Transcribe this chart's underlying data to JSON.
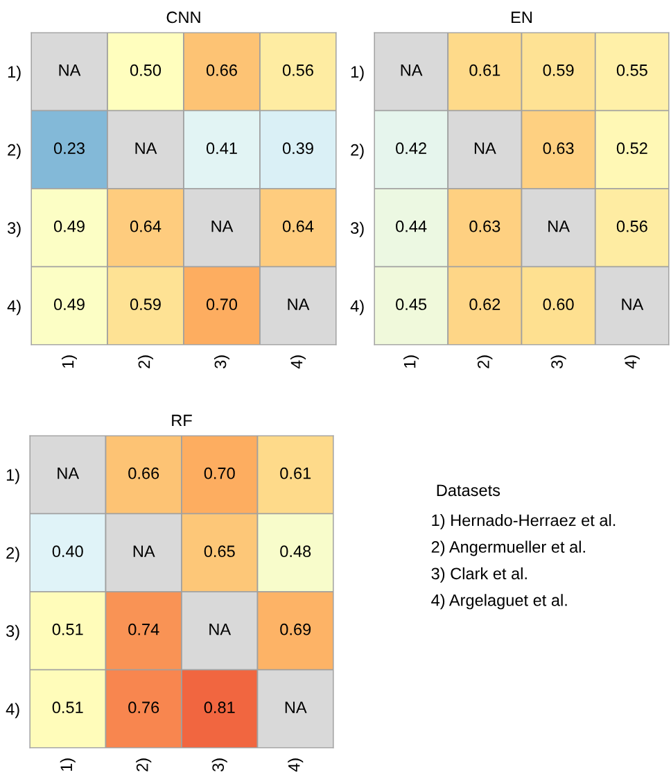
{
  "chart_data": [
    {
      "type": "heatmap",
      "title": "CNN",
      "categories": [
        "1)",
        "2)",
        "3)",
        "4)"
      ],
      "y_categories": [
        "1)",
        "2)",
        "3)",
        "4)"
      ],
      "cells": [
        [
          null,
          0.5,
          0.66,
          0.56
        ],
        [
          0.23,
          null,
          0.41,
          0.39
        ],
        [
          0.49,
          0.64,
          null,
          0.64
        ],
        [
          0.49,
          0.59,
          0.7,
          null
        ]
      ],
      "cell_labels": [
        [
          "NA",
          "0.50",
          "0.66",
          "0.56"
        ],
        [
          "0.23",
          "NA",
          "0.41",
          "0.39"
        ],
        [
          "0.49",
          "0.64",
          "NA",
          "0.64"
        ],
        [
          "0.49",
          "0.59",
          "0.70",
          "NA"
        ]
      ]
    },
    {
      "type": "heatmap",
      "title": "EN",
      "categories": [
        "1)",
        "2)",
        "3)",
        "4)"
      ],
      "y_categories": [
        "1)",
        "2)",
        "3)",
        "4)"
      ],
      "cells": [
        [
          null,
          0.61,
          0.59,
          0.55
        ],
        [
          0.42,
          null,
          0.63,
          0.52
        ],
        [
          0.44,
          0.63,
          null,
          0.56
        ],
        [
          0.45,
          0.62,
          0.6,
          null
        ]
      ],
      "cell_labels": [
        [
          "NA",
          "0.61",
          "0.59",
          "0.55"
        ],
        [
          "0.42",
          "NA",
          "0.63",
          "0.52"
        ],
        [
          "0.44",
          "0.63",
          "NA",
          "0.56"
        ],
        [
          "0.45",
          "0.62",
          "0.60",
          "NA"
        ]
      ]
    },
    {
      "type": "heatmap",
      "title": "RF",
      "categories": [
        "1)",
        "2)",
        "3)",
        "4)"
      ],
      "y_categories": [
        "1)",
        "2)",
        "3)",
        "4)"
      ],
      "cells": [
        [
          null,
          0.66,
          0.7,
          0.61
        ],
        [
          0.4,
          null,
          0.65,
          0.48
        ],
        [
          0.51,
          0.74,
          null,
          0.69
        ],
        [
          0.51,
          0.76,
          0.81,
          null
        ]
      ],
      "cell_labels": [
        [
          "NA",
          "0.66",
          "0.70",
          "0.61"
        ],
        [
          "0.40",
          "NA",
          "0.65",
          "0.48"
        ],
        [
          "0.51",
          "0.74",
          "NA",
          "0.69"
        ],
        [
          "0.51",
          "0.76",
          "0.81",
          "NA"
        ]
      ]
    },
    {
      "type": "other",
      "title": "Datasets",
      "annotations": [
        "1) Hernado-Herraez et al.",
        "2) Angermueller et al.",
        "3) Clark et al.",
        "4) Argelaguet et al."
      ]
    }
  ]
}
